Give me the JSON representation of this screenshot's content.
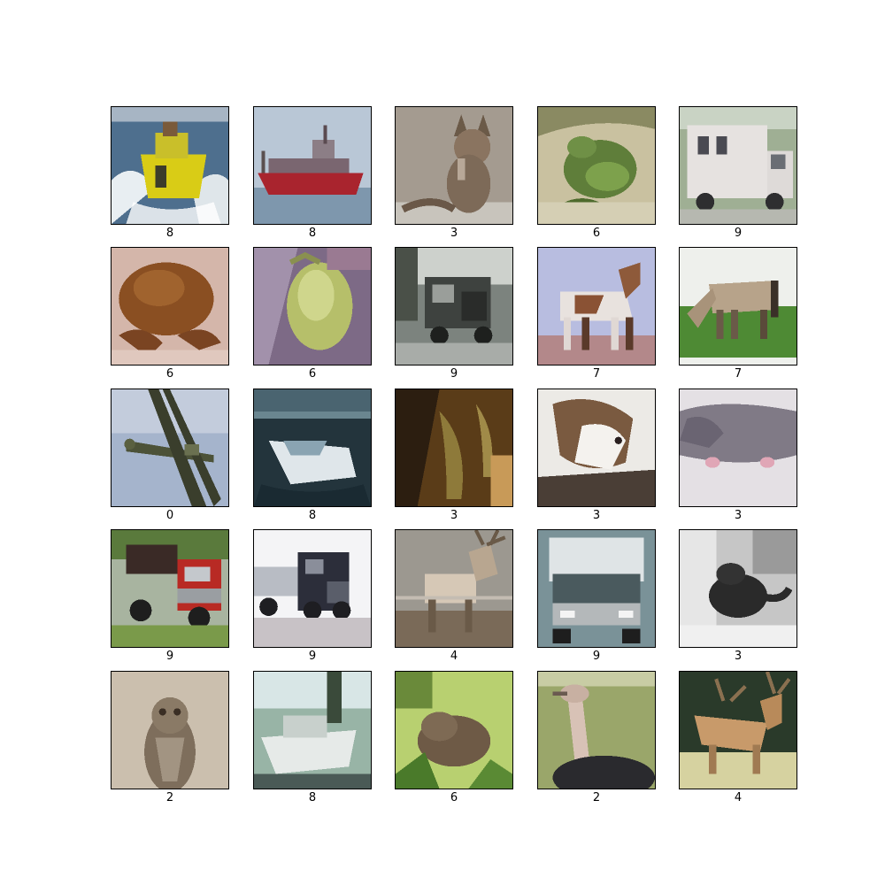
{
  "figure": {
    "rows": 5,
    "cols": 5,
    "cells": [
      {
        "label": "8",
        "scene": "yellow-boat-splash"
      },
      {
        "label": "8",
        "scene": "red-cargo-ship"
      },
      {
        "label": "3",
        "scene": "tabby-cat-sitting"
      },
      {
        "label": "6",
        "scene": "green-frog"
      },
      {
        "label": "9",
        "scene": "white-truck"
      },
      {
        "label": "6",
        "scene": "brown-toad"
      },
      {
        "label": "6",
        "scene": "pale-frog"
      },
      {
        "label": "9",
        "scene": "vintage-truck"
      },
      {
        "label": "7",
        "scene": "pinto-horse"
      },
      {
        "label": "7",
        "scene": "grazing-horse"
      },
      {
        "label": "0",
        "scene": "propeller-airplane"
      },
      {
        "label": "8",
        "scene": "white-motorboat"
      },
      {
        "label": "3",
        "scene": "dark-cat-closeup"
      },
      {
        "label": "3",
        "scene": "calico-cat-face"
      },
      {
        "label": "3",
        "scene": "grey-cat-lying"
      },
      {
        "label": "9",
        "scene": "red-dump-truck"
      },
      {
        "label": "9",
        "scene": "semi-truck"
      },
      {
        "label": "4",
        "scene": "elk-antlers"
      },
      {
        "label": "9",
        "scene": "box-truck-front"
      },
      {
        "label": "3",
        "scene": "black-cat-grayscale"
      },
      {
        "label": "2",
        "scene": "owl-perched"
      },
      {
        "label": "8",
        "scene": "white-boat-harbor"
      },
      {
        "label": "6",
        "scene": "toad-in-grass"
      },
      {
        "label": "2",
        "scene": "ostrich-head"
      },
      {
        "label": "4",
        "scene": "spotted-deer"
      }
    ]
  }
}
